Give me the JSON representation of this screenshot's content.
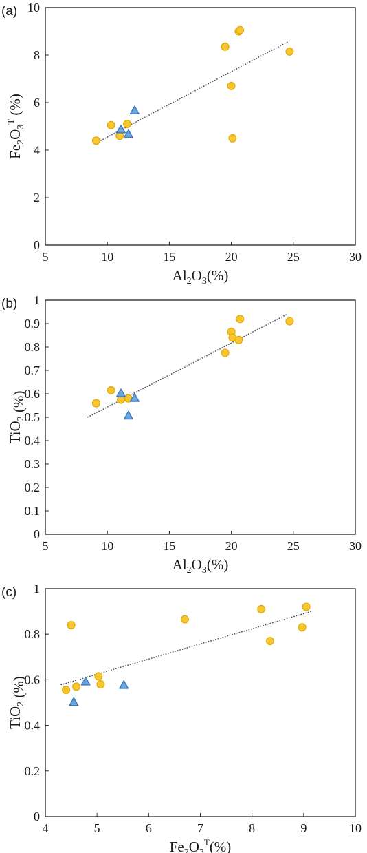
{
  "chart_data": [
    {
      "type": "scatter",
      "panel_label": "(a)",
      "xlabel": {
        "base": "Al",
        "sub1": "2",
        "mid": "O",
        "sub2": "3",
        "sup": "",
        "suffix": "(%)"
      },
      "ylabel": {
        "base": "Fe",
        "sub1": "2",
        "mid": "O",
        "sub2": "3",
        "sup": "T",
        "suffix": " (%)"
      },
      "xlim": [
        5,
        30
      ],
      "ylim": [
        0,
        10
      ],
      "x_ticks": [
        "5",
        "10",
        "15",
        "20",
        "25",
        "30"
      ],
      "y_ticks": [
        "0",
        "2",
        "4",
        "6",
        "8",
        "10"
      ],
      "grid": false,
      "series": [
        {
          "marker": "circle",
          "color": "#f8c630",
          "edge": "#e0a800",
          "points": [
            [
              9.1,
              4.4
            ],
            [
              10.3,
              5.05
            ],
            [
              11.0,
              4.6
            ],
            [
              11.6,
              5.1
            ],
            [
              19.5,
              8.35
            ],
            [
              20.0,
              6.7
            ],
            [
              20.1,
              4.5
            ],
            [
              20.6,
              9.0
            ],
            [
              20.7,
              9.05
            ],
            [
              24.7,
              8.15
            ]
          ]
        },
        {
          "marker": "triangle",
          "color": "#6aa4dc",
          "edge": "#3a78bd",
          "points": [
            [
              11.1,
              4.85
            ],
            [
              11.7,
              4.65
            ],
            [
              12.2,
              5.65
            ]
          ]
        }
      ],
      "trendline": {
        "x": [
          9.1,
          24.7
        ],
        "y": [
          4.3,
          8.6
        ]
      }
    },
    {
      "type": "scatter",
      "panel_label": "(b)",
      "xlabel": {
        "base": "Al",
        "sub1": "2",
        "mid": "O",
        "sub2": "3",
        "sup": "",
        "suffix": "(%)"
      },
      "ylabel": {
        "base": "TiO",
        "sub1": "2",
        "mid": "",
        "sub2": "",
        "sup": "",
        "suffix": " (%)"
      },
      "xlim": [
        5,
        30
      ],
      "ylim": [
        0,
        1
      ],
      "x_ticks": [
        "5",
        "10",
        "15",
        "20",
        "25",
        "30"
      ],
      "y_ticks": [
        "0",
        "0.1",
        "0.2",
        "0.3",
        "0.4",
        "0.5",
        "0.6",
        "0.7",
        "0.8",
        "0.9",
        "1"
      ],
      "grid": false,
      "series": [
        {
          "marker": "circle",
          "color": "#f8c630",
          "edge": "#e0a800",
          "points": [
            [
              9.1,
              0.56
            ],
            [
              10.3,
              0.615
            ],
            [
              11.1,
              0.575
            ],
            [
              11.7,
              0.58
            ],
            [
              19.5,
              0.775
            ],
            [
              20.0,
              0.865
            ],
            [
              20.1,
              0.84
            ],
            [
              20.6,
              0.83
            ],
            [
              20.7,
              0.92
            ],
            [
              24.7,
              0.91
            ]
          ]
        },
        {
          "marker": "triangle",
          "color": "#6aa4dc",
          "edge": "#3a78bd",
          "points": [
            [
              11.1,
              0.6
            ],
            [
              11.7,
              0.505
            ],
            [
              12.2,
              0.58
            ]
          ]
        }
      ],
      "trendline": {
        "x": [
          8.4,
          24.5
        ],
        "y": [
          0.5,
          0.94
        ]
      }
    },
    {
      "type": "scatter",
      "panel_label": "(c)",
      "xlabel": {
        "base": "Fe",
        "sub1": "2",
        "mid": "O",
        "sub2": "3",
        "sup": "T",
        "suffix": "(%)"
      },
      "ylabel": {
        "base": "TiO",
        "sub1": "2",
        "mid": "",
        "sub2": "",
        "sup": "",
        "suffix": " (%)"
      },
      "xlim": [
        4,
        10
      ],
      "ylim": [
        0,
        1
      ],
      "x_ticks": [
        "4",
        "5",
        "6",
        "7",
        "8",
        "9",
        "10"
      ],
      "y_ticks": [
        "0",
        "0.2",
        "0.4",
        "0.6",
        "0.8",
        "1"
      ],
      "grid": false,
      "series": [
        {
          "marker": "circle",
          "color": "#f8c630",
          "edge": "#e0a800",
          "points": [
            [
              4.4,
              0.555
            ],
            [
              4.5,
              0.84
            ],
            [
              4.6,
              0.57
            ],
            [
              5.03,
              0.615
            ],
            [
              5.07,
              0.58
            ],
            [
              6.7,
              0.865
            ],
            [
              8.18,
              0.91
            ],
            [
              8.35,
              0.77
            ],
            [
              8.97,
              0.83
            ],
            [
              9.05,
              0.92
            ]
          ]
        },
        {
          "marker": "triangle",
          "color": "#6aa4dc",
          "edge": "#3a78bd",
          "points": [
            [
              4.55,
              0.5
            ],
            [
              4.78,
              0.59
            ],
            [
              5.52,
              0.575
            ]
          ]
        }
      ],
      "trendline": {
        "x": [
          4.3,
          9.15
        ],
        "y": [
          0.578,
          0.9
        ]
      }
    }
  ]
}
